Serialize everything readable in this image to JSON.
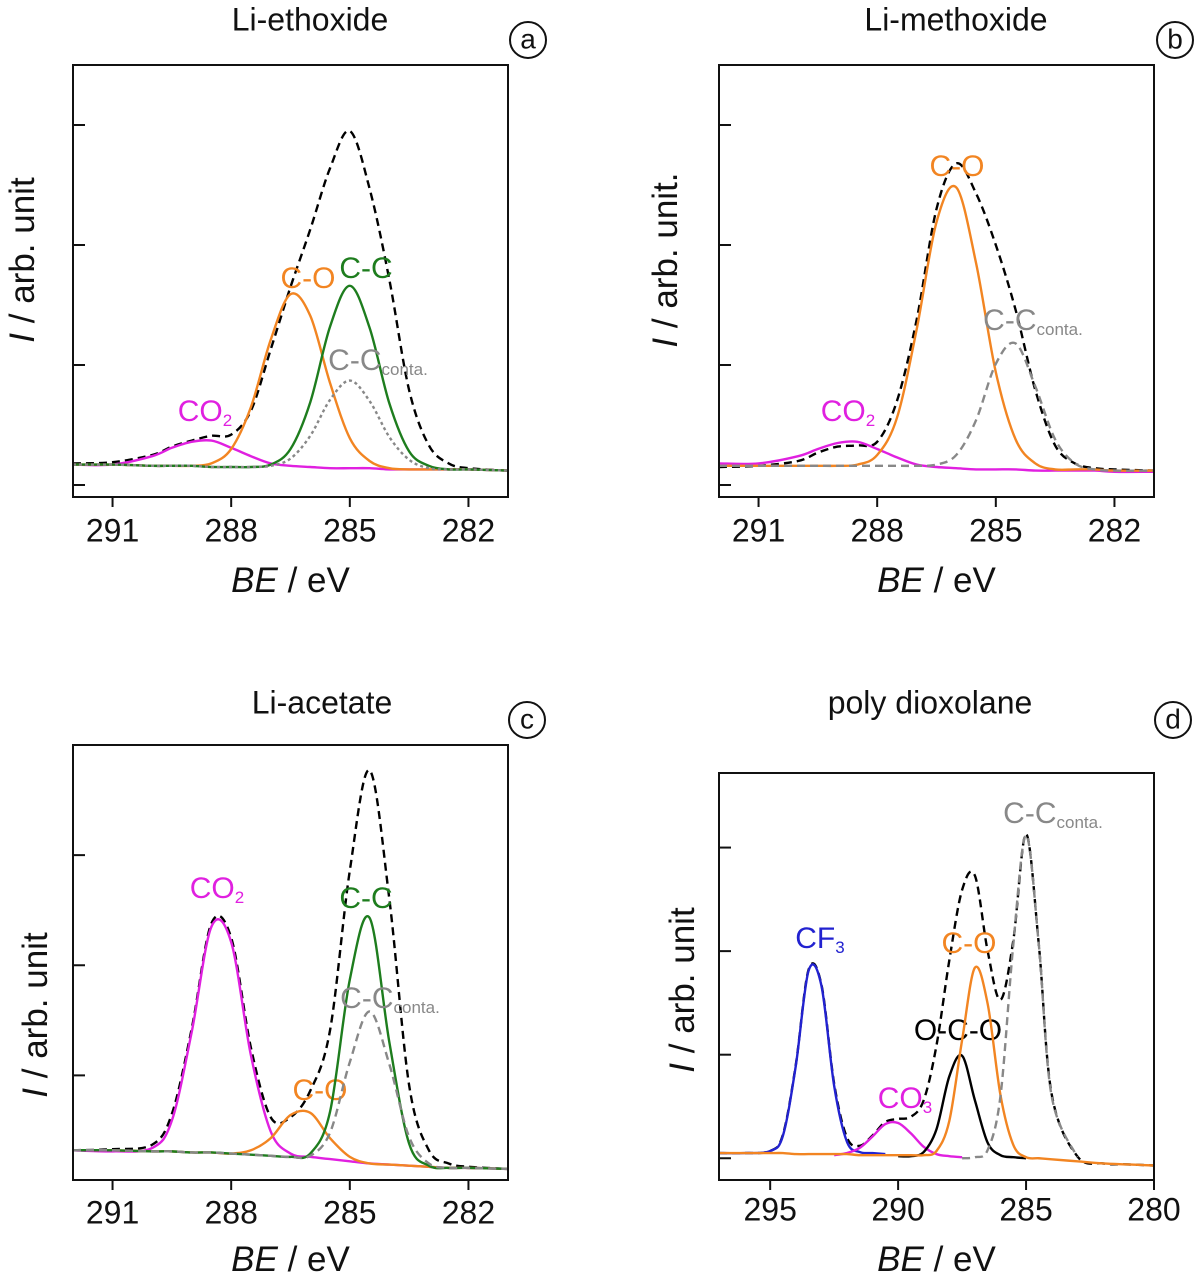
{
  "chart_data": [
    {
      "type": "line",
      "title": "Li-ethoxide",
      "panel_label": "a",
      "xlabel": {
        "italic": "BE",
        "text": " / eV"
      },
      "ylabel": {
        "italic": "I",
        "text": " / arb. unit"
      },
      "x": [
        292,
        291,
        290,
        289.5,
        289,
        288.5,
        288,
        287.5,
        287,
        286.5,
        286,
        285.5,
        285,
        284.5,
        284,
        283.5,
        283,
        282.5,
        282,
        281
      ],
      "xlim": [
        292,
        281
      ],
      "xticks": [
        291,
        288,
        285,
        282
      ],
      "ylim": [
        -0.1,
        3.5
      ],
      "yticks": [
        0,
        1,
        2,
        3
      ],
      "series": [
        {
          "color": "#000000",
          "style": "dashed",
          "values": [
            0.18,
            0.19,
            0.25,
            0.32,
            0.37,
            0.41,
            0.42,
            0.62,
            1.13,
            1.65,
            2.13,
            2.64,
            2.95,
            2.47,
            1.71,
            0.79,
            0.33,
            0.18,
            0.14,
            0.12
          ]
        },
        {
          "name": "CO",
          "subscript": "2",
          "color": "#e020e0",
          "style": "solid",
          "values": [
            0.17,
            0.17,
            0.24,
            0.31,
            0.36,
            0.37,
            0.31,
            0.24,
            0.18,
            0.16,
            0.15,
            0.14,
            0.14,
            0.14,
            0.13,
            0.13,
            0.13,
            0.13,
            0.13,
            0.12
          ]
        },
        {
          "name": "C-O",
          "color": "#f28522",
          "style": "solid",
          "values": [
            0.17,
            0.17,
            0.16,
            0.16,
            0.16,
            0.18,
            0.3,
            0.65,
            1.21,
            1.59,
            1.41,
            0.85,
            0.39,
            0.2,
            0.14,
            0.13,
            0.13,
            0.13,
            0.13,
            0.12
          ]
        },
        {
          "name": "C-C",
          "color": "#1e7d1e",
          "style": "solid",
          "values": [
            0.17,
            0.17,
            0.16,
            0.16,
            0.16,
            0.15,
            0.15,
            0.15,
            0.17,
            0.3,
            0.69,
            1.32,
            1.66,
            1.31,
            0.68,
            0.28,
            0.16,
            0.13,
            0.13,
            0.12
          ]
        },
        {
          "name": "C-C",
          "subscript": "conta.",
          "color": "#888888",
          "style": "dotted",
          "values": [
            0.17,
            0.17,
            0.16,
            0.16,
            0.16,
            0.15,
            0.15,
            0.15,
            0.16,
            0.22,
            0.41,
            0.71,
            0.87,
            0.7,
            0.4,
            0.21,
            0.14,
            0.13,
            0.13,
            0.12
          ]
        }
      ]
    },
    {
      "type": "line",
      "title": "Li-methoxide",
      "panel_label": "b",
      "xlabel": {
        "italic": "BE",
        "text": " / eV"
      },
      "ylabel": {
        "italic": "I",
        "text": " / arb. unit."
      },
      "x": [
        292,
        291,
        290,
        289.5,
        289,
        288.5,
        288,
        287.5,
        287,
        286.5,
        286,
        285.5,
        285,
        284.5,
        284,
        283.5,
        283,
        282.5,
        282,
        281
      ],
      "xlim": [
        292,
        281
      ],
      "xticks": [
        291,
        288,
        285,
        282
      ],
      "ylim": [
        -0.1,
        3.5
      ],
      "yticks": [
        0,
        1,
        2,
        3
      ],
      "series": [
        {
          "color": "#000000",
          "style": "dashed",
          "values": [
            0.15,
            0.16,
            0.2,
            0.27,
            0.32,
            0.33,
            0.36,
            0.7,
            1.38,
            2.3,
            2.68,
            2.43,
            2.0,
            1.46,
            0.79,
            0.33,
            0.18,
            0.14,
            0.13,
            0.12
          ]
        },
        {
          "name": "CO",
          "subscript": "2",
          "color": "#e020e0",
          "style": "solid",
          "values": [
            0.18,
            0.18,
            0.24,
            0.3,
            0.35,
            0.36,
            0.3,
            0.23,
            0.17,
            0.15,
            0.14,
            0.13,
            0.13,
            0.13,
            0.12,
            0.12,
            0.12,
            0.12,
            0.11,
            0.11
          ]
        },
        {
          "name": "C-O",
          "color": "#f28522",
          "style": "solid",
          "values": [
            0.16,
            0.16,
            0.16,
            0.16,
            0.16,
            0.17,
            0.25,
            0.56,
            1.3,
            2.19,
            2.48,
            1.85,
            0.94,
            0.38,
            0.18,
            0.13,
            0.13,
            0.13,
            0.12,
            0.12
          ]
        },
        {
          "name": "C-C",
          "subscript": "conta.",
          "color": "#888888",
          "style": "dashed",
          "values": [
            0.16,
            0.16,
            0.16,
            0.16,
            0.16,
            0.16,
            0.16,
            0.16,
            0.16,
            0.17,
            0.25,
            0.54,
            1.01,
            1.18,
            0.82,
            0.38,
            0.18,
            0.13,
            0.12,
            0.12
          ]
        }
      ]
    },
    {
      "type": "line",
      "title": "Li-acetate",
      "panel_label": "c",
      "xlabel": {
        "italic": "BE",
        "text": " / eV"
      },
      "ylabel": {
        "italic": "I",
        "text": " / arb. unit"
      },
      "x": [
        292,
        291,
        290,
        289.5,
        289,
        288.5,
        288,
        287.5,
        287,
        286.5,
        286,
        285.5,
        285,
        284.5,
        284,
        283.5,
        283,
        282.5,
        282,
        281
      ],
      "xlim": [
        292,
        281
      ],
      "xticks": [
        291,
        288,
        285,
        282
      ],
      "ylim": [
        0.05,
        4.0
      ],
      "yticks": [
        1,
        2,
        3
      ],
      "series": [
        {
          "color": "#000000",
          "style": "dashed",
          "values": [
            0.32,
            0.33,
            0.37,
            0.65,
            1.42,
            2.38,
            2.25,
            1.25,
            0.62,
            0.62,
            0.86,
            1.41,
            2.86,
            3.77,
            2.6,
            0.91,
            0.32,
            0.2,
            0.17,
            0.15
          ]
        },
        {
          "name": "CO",
          "subscript": "2",
          "color": "#e020e0",
          "style": "solid",
          "values": [
            0.32,
            0.31,
            0.34,
            0.59,
            1.39,
            2.35,
            2.21,
            1.18,
            0.49,
            0.29,
            0.26,
            0.24,
            0.22,
            0.2,
            0.19,
            0.18,
            0.17,
            0.16,
            0.16,
            0.15
          ]
        },
        {
          "name": "C-O",
          "color": "#f28522",
          "style": "solid",
          "values": [
            0.32,
            0.32,
            0.31,
            0.31,
            0.3,
            0.3,
            0.29,
            0.32,
            0.43,
            0.64,
            0.66,
            0.43,
            0.26,
            0.2,
            0.19,
            0.18,
            0.17,
            0.16,
            0.16,
            0.15
          ]
        },
        {
          "name": "C-C",
          "color": "#1e7d1e",
          "style": "solid",
          "values": [
            0.32,
            0.32,
            0.31,
            0.31,
            0.3,
            0.3,
            0.29,
            0.28,
            0.27,
            0.26,
            0.29,
            0.67,
            1.87,
            2.43,
            1.3,
            0.38,
            0.18,
            0.16,
            0.16,
            0.15
          ]
        },
        {
          "name": "C-C",
          "subscript": "conta.",
          "color": "#888888",
          "style": "dashed",
          "values": [
            0.32,
            0.32,
            0.31,
            0.31,
            0.3,
            0.3,
            0.29,
            0.28,
            0.27,
            0.26,
            0.27,
            0.48,
            1.12,
            1.58,
            1.1,
            0.44,
            0.2,
            0.16,
            0.16,
            0.15
          ]
        }
      ]
    },
    {
      "type": "line",
      "title": "poly dioxolane",
      "panel_label": "d",
      "xlabel": {
        "italic": "BE",
        "text": " / eV"
      },
      "ylabel": {
        "italic": "I",
        "text": " / arb. unit"
      },
      "x": [
        297,
        296,
        295,
        294.5,
        294,
        293.5,
        293,
        292.5,
        292,
        291.5,
        291,
        290.5,
        290,
        289.5,
        289,
        288.5,
        288,
        287.5,
        287,
        286.5,
        286,
        285.5,
        285,
        284.5,
        284,
        283,
        282,
        281,
        280
      ],
      "xlim": [
        297,
        280
      ],
      "xticks": [
        295,
        290,
        285,
        280
      ],
      "ylim": [
        -0.21,
        3.72
      ],
      "yticks": [
        0,
        1,
        2,
        3
      ],
      "series": [
        {
          "color": "#000000",
          "style": "dashed",
          "values": [
            0.05,
            0.05,
            0.07,
            0.23,
            0.9,
            1.82,
            1.68,
            0.72,
            0.2,
            0.12,
            0.22,
            0.35,
            0.38,
            0.4,
            0.56,
            1.09,
            1.91,
            2.59,
            2.73,
            2.0,
            1.53,
            2.1,
            3.13,
            2.06,
            0.62,
            0.02,
            -0.05,
            -0.06,
            -0.07
          ]
        },
        {
          "name": "CF",
          "subscript": "3",
          "color": "#2222d0",
          "style": "solid",
          "values": [
            0.05,
            0.05,
            0.07,
            0.22,
            0.89,
            1.81,
            1.67,
            0.7,
            0.16,
            0.06,
            0.05,
            0.04,
            null,
            null,
            null,
            null,
            null,
            null,
            null,
            null,
            null,
            null,
            null,
            null,
            null,
            null,
            null,
            null,
            null
          ]
        },
        {
          "name": "CO",
          "subscript": "3",
          "color": "#e020e0",
          "style": "solid",
          "values": [
            null,
            null,
            null,
            null,
            null,
            null,
            null,
            0.03,
            0.05,
            0.1,
            0.21,
            0.33,
            0.34,
            0.24,
            0.11,
            0.04,
            0.02,
            0.01,
            null,
            null,
            null,
            null,
            null,
            null,
            null,
            null,
            null,
            null,
            null
          ]
        },
        {
          "name": "O-C-O",
          "color": "#000000",
          "style": "solid",
          "values": [
            null,
            null,
            null,
            null,
            null,
            null,
            null,
            null,
            null,
            null,
            null,
            null,
            0.02,
            0.02,
            0.06,
            0.28,
            0.79,
            0.99,
            0.56,
            0.15,
            0.03,
            0.01,
            0,
            null,
            null,
            null,
            null,
            null,
            null
          ]
        },
        {
          "name": "C-O",
          "color": "#f28522",
          "style": "solid",
          "values": [
            0.05,
            0.05,
            0.05,
            0.05,
            0.04,
            0.04,
            0.04,
            0.04,
            0.04,
            0.03,
            0.03,
            0.03,
            0.03,
            0.03,
            0.03,
            0.07,
            0.36,
            1.14,
            1.84,
            1.49,
            0.61,
            0.13,
            0.01,
            0,
            -0.01,
            -0.03,
            -0.05,
            -0.06,
            -0.07
          ]
        },
        {
          "name": "C-C",
          "subscript": "conta.",
          "color": "#888888",
          "style": "dashed",
          "values": [
            null,
            null,
            null,
            null,
            null,
            null,
            null,
            null,
            null,
            null,
            null,
            null,
            null,
            null,
            null,
            null,
            null,
            0,
            0.01,
            0.08,
            0.6,
            2.06,
            3.12,
            2.06,
            0.6,
            0.01,
            null,
            null,
            null
          ]
        }
      ]
    }
  ]
}
